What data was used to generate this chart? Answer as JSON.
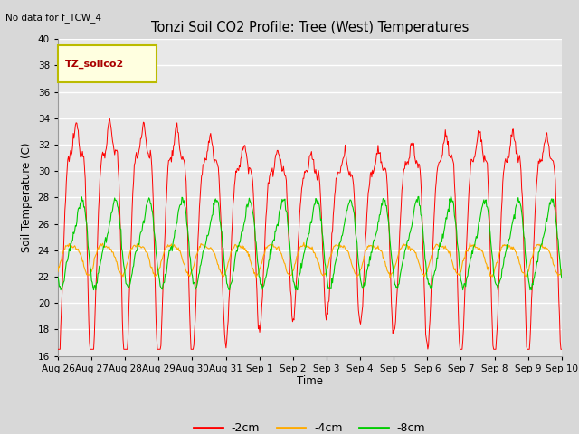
{
  "title": "Tonzi Soil CO2 Profile: Tree (West) Temperatures",
  "subtitle": "No data for f_TCW_4",
  "ylabel": "Soil Temperature (C)",
  "xlabel": "Time",
  "legend_label": "TZ_soilco2",
  "series_labels": [
    "-2cm",
    "-4cm",
    "-8cm"
  ],
  "series_colors": [
    "#ff0000",
    "#ffaa00",
    "#00cc00"
  ],
  "ylim": [
    16,
    40
  ],
  "yticks": [
    16,
    18,
    20,
    22,
    24,
    26,
    28,
    30,
    32,
    34,
    36,
    38,
    40
  ],
  "plot_bg": "#e8e8e8",
  "fig_bg": "#d8d8d8",
  "grid_color": "#ffffff",
  "x_tick_labels": [
    "Aug 26",
    "Aug 27",
    "Aug 28",
    "Aug 29",
    "Aug 30",
    "Aug 31",
    "Sep 1",
    "Sep 2",
    "Sep 3",
    "Sep 4",
    "Sep 5",
    "Sep 6",
    "Sep 7",
    "Sep 8",
    "Sep 9",
    "Sep 10"
  ],
  "num_days": 15,
  "figsize": [
    6.4,
    4.8
  ],
  "dpi": 100
}
